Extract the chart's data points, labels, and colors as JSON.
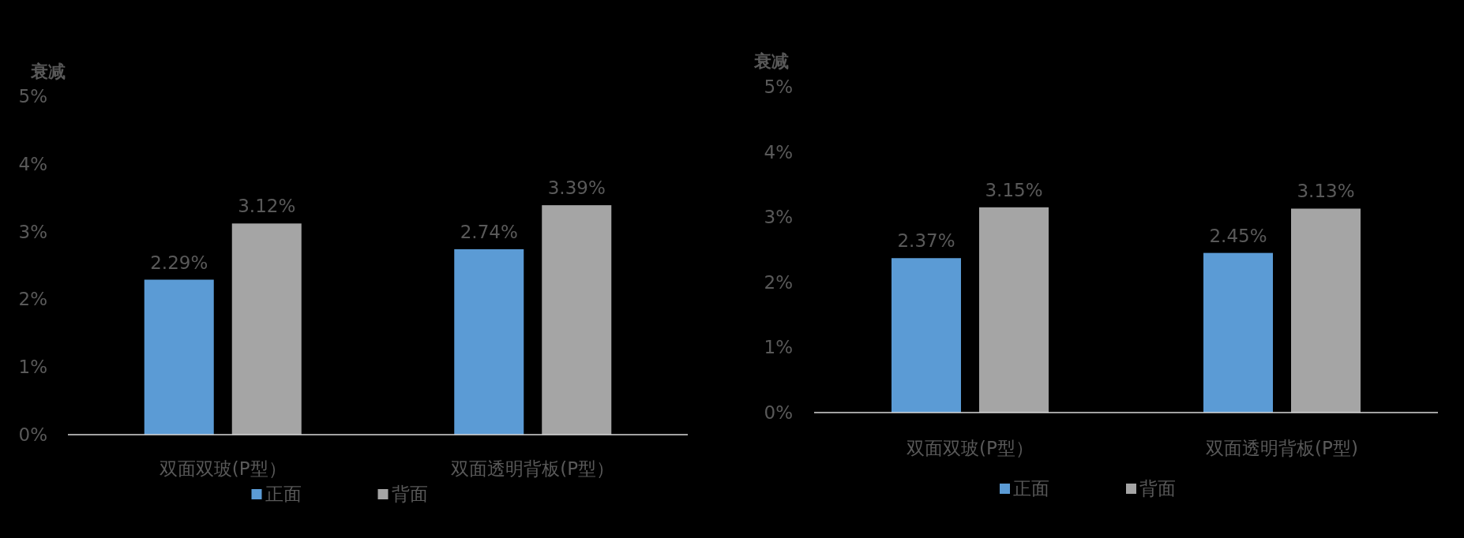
{
  "chart_data": [
    {
      "type": "bar",
      "ylabel": "衰减",
      "categories": [
        "双面双玻(P型）",
        "双面透明背板(P型）"
      ],
      "series": [
        {
          "name": "正面",
          "color": "#5b9bd5",
          "values": [
            2.29,
            2.74
          ],
          "value_labels": [
            "2.29%",
            "2.74%"
          ]
        },
        {
          "name": "背面",
          "color": "#a5a5a5",
          "values": [
            3.12,
            3.39
          ],
          "value_labels": [
            "3.12%",
            "3.39%"
          ]
        }
      ],
      "ylim": [
        0,
        5
      ],
      "yticks": [
        {
          "value": 0,
          "label": "0%"
        },
        {
          "value": 1,
          "label": "1%"
        },
        {
          "value": 2,
          "label": "2%"
        },
        {
          "value": 3,
          "label": "3%"
        },
        {
          "value": 4,
          "label": "4%"
        },
        {
          "value": 5,
          "label": "5%"
        }
      ],
      "legend": "bottom"
    },
    {
      "type": "bar",
      "ylabel": "衰减",
      "categories": [
        "双面双玻(P型）",
        "双面透明背板(P型)"
      ],
      "series": [
        {
          "name": "正面",
          "color": "#5b9bd5",
          "values": [
            2.37,
            2.45
          ],
          "value_labels": [
            "2.37%",
            "2.45%"
          ]
        },
        {
          "name": "背面",
          "color": "#a5a5a5",
          "values": [
            3.15,
            3.13
          ],
          "value_labels": [
            "3.15%",
            "3.13%"
          ]
        }
      ],
      "ylim": [
        0,
        5
      ],
      "yticks": [
        {
          "value": 0,
          "label": "0%"
        },
        {
          "value": 1,
          "label": "1%"
        },
        {
          "value": 2,
          "label": "2%"
        },
        {
          "value": 3,
          "label": "3%"
        },
        {
          "value": 4,
          "label": "4%"
        },
        {
          "value": 5,
          "label": "5%"
        }
      ],
      "legend": "bottom"
    }
  ]
}
